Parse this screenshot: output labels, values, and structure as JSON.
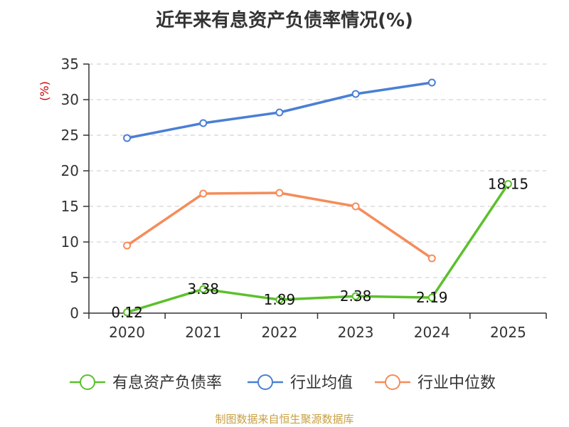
{
  "chart_data": {
    "type": "line",
    "title": "近年来有息资产负债率情况(%)",
    "ylabel": "(%)",
    "categories": [
      "2020",
      "2021",
      "2022",
      "2023",
      "2024",
      "2025"
    ],
    "ylim": [
      0,
      35
    ],
    "yticks": [
      0,
      5,
      10,
      15,
      20,
      25,
      30,
      35
    ],
    "grid": true,
    "legend": "bottom",
    "series": [
      {
        "name": "有息资产负债率",
        "color": "#5cc02c",
        "values": [
          0.12,
          3.38,
          1.89,
          2.38,
          2.19,
          18.15
        ],
        "labels": [
          "0.12",
          "3.38",
          "1.89",
          "2.38",
          "2.19",
          "18.15"
        ]
      },
      {
        "name": "行业均值",
        "color": "#4a7fd4",
        "values": [
          24.6,
          26.7,
          28.2,
          30.8,
          32.4,
          null
        ]
      },
      {
        "name": "行业中位数",
        "color": "#f58c5a",
        "values": [
          9.5,
          16.8,
          16.9,
          15.0,
          7.7,
          null
        ]
      }
    ]
  },
  "source": "制图数据来自恒生聚源数据库"
}
